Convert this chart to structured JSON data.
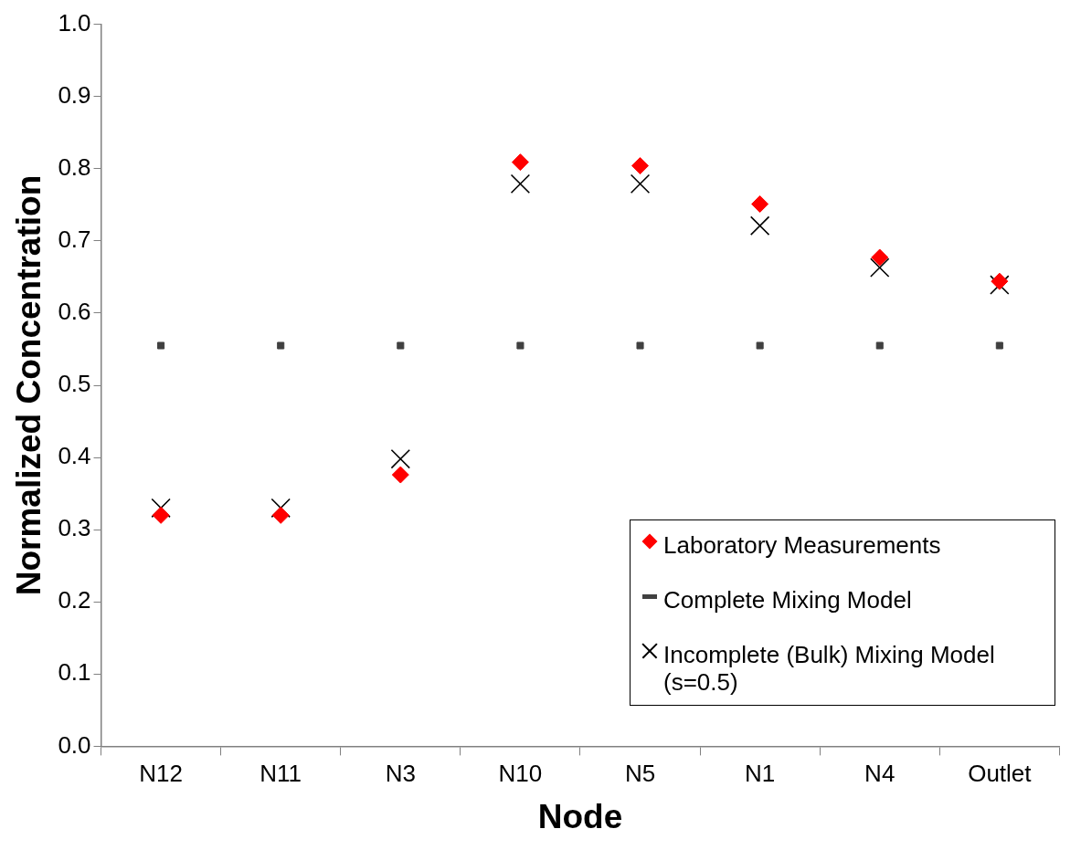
{
  "chart_data": {
    "type": "scatter",
    "xlabel": "Node",
    "ylabel": "Normalized Concentration",
    "categories": [
      "N12",
      "N11",
      "N3",
      "N10",
      "N5",
      "N1",
      "N4",
      "Outlet"
    ],
    "series": [
      {
        "name": "Laboratory Measurements",
        "color": "#ff0000",
        "marker": "diamond",
        "values": [
          0.32,
          0.32,
          0.376,
          0.809,
          0.804,
          0.751,
          0.677,
          0.644
        ]
      },
      {
        "name": "Complete Mixing Model",
        "color": "#404040",
        "marker": "square",
        "values": [
          0.555,
          0.555,
          0.555,
          0.555,
          0.555,
          0.555,
          0.555,
          0.555
        ]
      },
      {
        "name": "Incomplete (Bulk) Mixing Model (s=0.5)",
        "color": "#000000",
        "marker": "cross",
        "values": [
          0.33,
          0.33,
          0.398,
          0.779,
          0.779,
          0.721,
          0.663,
          0.639
        ]
      }
    ],
    "ylim": [
      0,
      1
    ],
    "yticks": [
      {
        "value": 0,
        "label": "0.0"
      },
      0.1,
      0.2,
      0.3,
      0.4,
      0.5,
      0.6,
      0.7,
      0.8,
      0.9,
      {
        "value": 1,
        "label": "1.0"
      }
    ],
    "grid": false,
    "legend": "bottom right"
  }
}
